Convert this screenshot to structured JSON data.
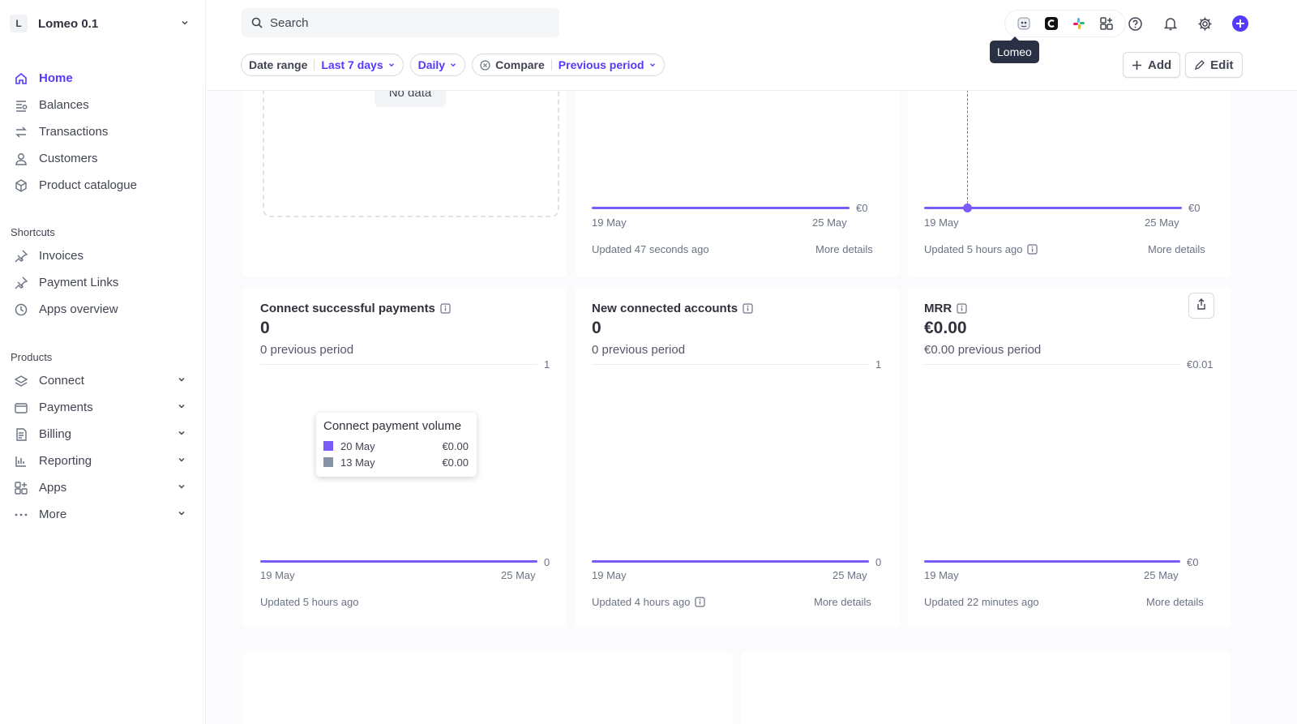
{
  "account": {
    "initial": "L",
    "name": "Lomeo 0.1"
  },
  "nav": {
    "main": [
      {
        "label": "Home",
        "icon": "home-icon"
      },
      {
        "label": "Balances",
        "icon": "balances-icon"
      },
      {
        "label": "Transactions",
        "icon": "transactions-icon"
      },
      {
        "label": "Customers",
        "icon": "customers-icon"
      },
      {
        "label": "Product catalogue",
        "icon": "product-catalogue-icon"
      }
    ],
    "shortcuts_label": "Shortcuts",
    "shortcuts": [
      {
        "label": "Invoices",
        "icon": "pin-icon"
      },
      {
        "label": "Payment Links",
        "icon": "pin-icon"
      },
      {
        "label": "Apps overview",
        "icon": "clock-icon"
      }
    ],
    "products_label": "Products",
    "products": [
      {
        "label": "Connect",
        "icon": "connect-icon"
      },
      {
        "label": "Payments",
        "icon": "payments-icon"
      },
      {
        "label": "Billing",
        "icon": "billing-icon"
      },
      {
        "label": "Reporting",
        "icon": "reporting-icon"
      },
      {
        "label": "Apps",
        "icon": "apps-icon"
      },
      {
        "label": "More",
        "icon": "more-icon"
      }
    ]
  },
  "search": {
    "placeholder": "Search"
  },
  "tooltip": "Lomeo",
  "filters": {
    "date_range_label": "Date range",
    "date_range_value": "Last 7 days",
    "interval_value": "Daily",
    "compare_label": "Compare",
    "compare_value": "Previous period"
  },
  "actions": {
    "add": "Add",
    "edit": "Edit"
  },
  "top_row": {
    "no_data": "No data",
    "card2": {
      "x_start": "19 May",
      "x_end": "25 May",
      "y_zero": "€0",
      "updated": "Updated 47 seconds ago",
      "more": "More details"
    },
    "card3": {
      "x_start": "19 May",
      "x_end": "25 May",
      "y_zero": "€0",
      "updated": "Updated 5 hours ago",
      "more": "More details"
    }
  },
  "cards": {
    "connect_payments": {
      "title": "Connect successful payments",
      "value": "0",
      "previous": "0 previous period",
      "y_max": "1",
      "y_min": "0",
      "x_start": "19 May",
      "x_end": "25 May",
      "updated": "Updated 5 hours ago",
      "tooltip": {
        "title": "Connect payment volume",
        "rows": [
          {
            "date": "20 May",
            "amount": "€0.00",
            "color": "#7a5af8"
          },
          {
            "date": "13 May",
            "amount": "€0.00",
            "color": "#8792a2"
          }
        ]
      }
    },
    "new_accounts": {
      "title": "New connected accounts",
      "value": "0",
      "previous": "0 previous period",
      "y_max": "1",
      "y_min": "0",
      "x_start": "19 May",
      "x_end": "25 May",
      "updated": "Updated 4 hours ago",
      "more": "More details"
    },
    "mrr": {
      "title": "MRR",
      "value": "€0.00",
      "previous": "€0.00 previous period",
      "y_max": "€0.01",
      "y_min": "€0",
      "x_start": "19 May",
      "x_end": "25 May",
      "updated": "Updated 22 minutes ago",
      "more": "More details"
    }
  },
  "colors": {
    "accent": "#533afd",
    "series": "#7a5af8",
    "compare": "#8792a2"
  }
}
